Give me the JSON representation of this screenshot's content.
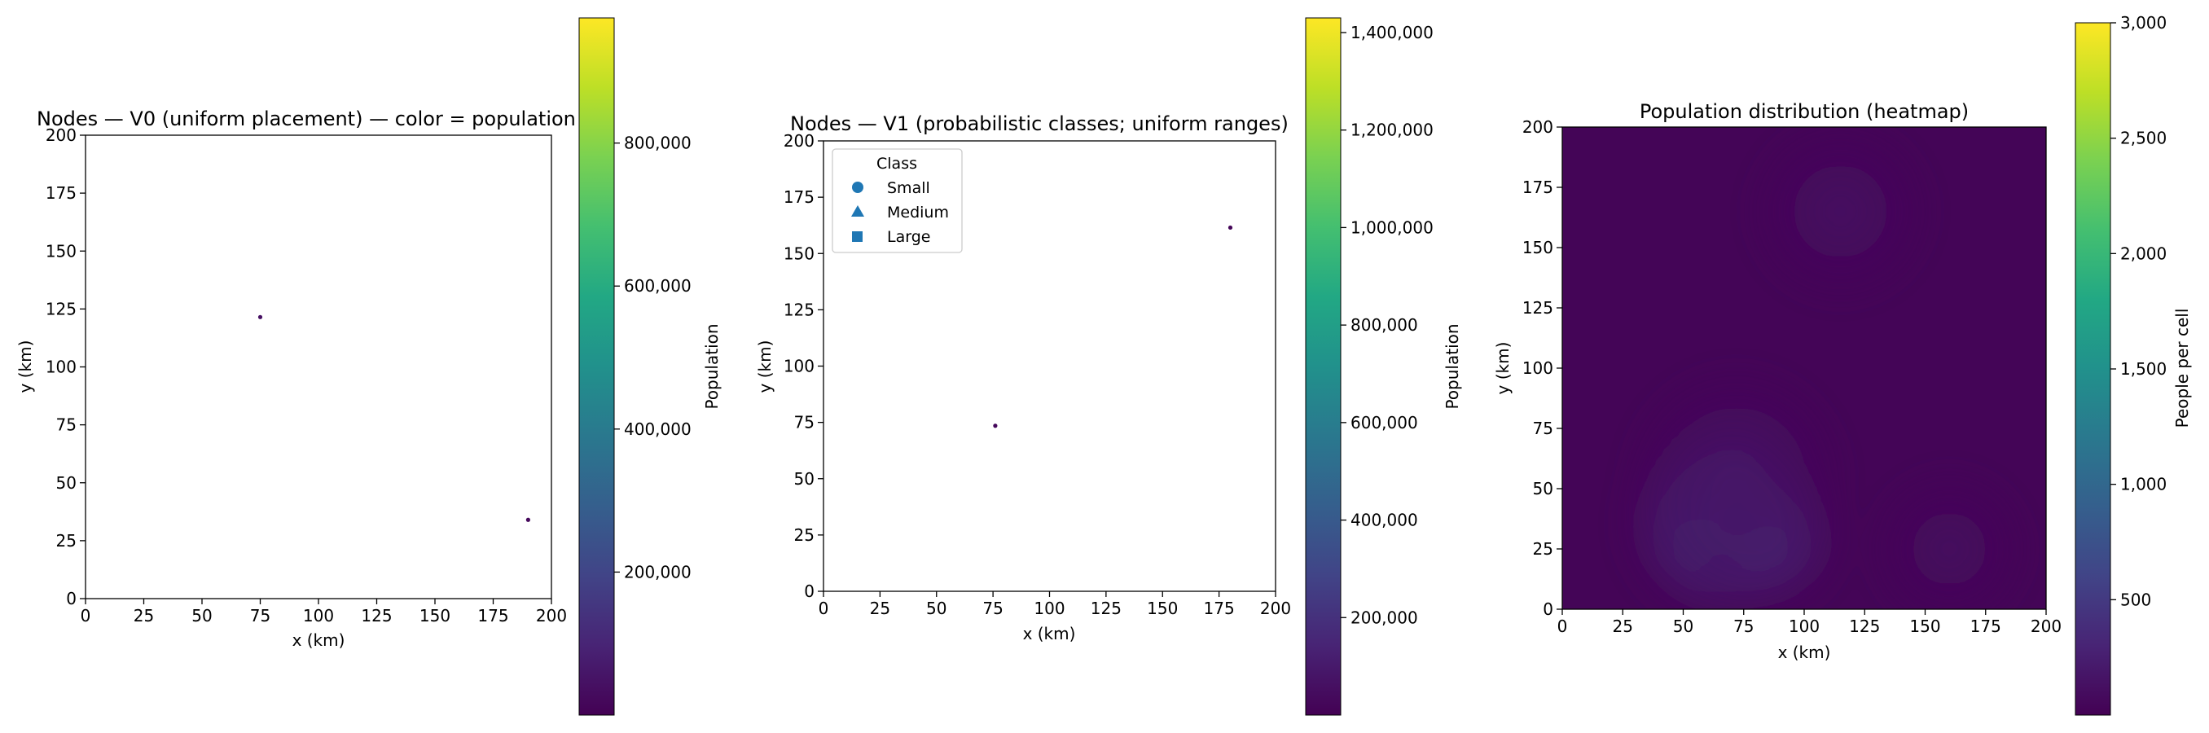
{
  "chart_data": [
    {
      "type": "scatter",
      "title": "Nodes — V0 (uniform placement) — color = population",
      "xlabel": "x (km)",
      "ylabel": "y (km)",
      "xlim": [
        0,
        200
      ],
      "ylim": [
        0,
        200
      ],
      "xticks": [
        "0",
        "25",
        "50",
        "75",
        "100",
        "125",
        "150",
        "175",
        "200"
      ],
      "yticks": [
        "0",
        "25",
        "50",
        "75",
        "100",
        "125",
        "150",
        "175",
        "200"
      ],
      "points": [
        {
          "x": 75,
          "y": 121.5,
          "population": 40000
        },
        {
          "x": 190,
          "y": 34,
          "population": 20000
        }
      ],
      "colorbar": {
        "label": "Population",
        "colormap": "viridis",
        "range": [
          0,
          975000
        ],
        "ticks": [
          200000,
          400000,
          600000,
          800000
        ],
        "tick_labels": [
          "200,000",
          "400,000",
          "600,000",
          "800,000"
        ]
      },
      "grid": false
    },
    {
      "type": "scatter",
      "title": "Nodes — V1 (probabilistic classes; uniform ranges)",
      "xlabel": "x (km)",
      "ylabel": "y (km)",
      "xlim": [
        0,
        200
      ],
      "ylim": [
        0,
        200
      ],
      "xticks": [
        "0",
        "25",
        "50",
        "75",
        "100",
        "125",
        "150",
        "175",
        "200"
      ],
      "yticks": [
        "0",
        "25",
        "50",
        "75",
        "100",
        "125",
        "150",
        "175",
        "200"
      ],
      "points": [
        {
          "x": 76,
          "y": 73.5,
          "population": 30000
        },
        {
          "x": 180,
          "y": 161.5,
          "population": 20000
        }
      ],
      "legend": {
        "title": "Class",
        "position": "top-left",
        "entries": [
          {
            "label": "Small",
            "marker": "circle"
          },
          {
            "label": "Medium",
            "marker": "triangle"
          },
          {
            "label": "Large",
            "marker": "square"
          }
        ],
        "color": "#1f77b4"
      },
      "colorbar": {
        "label": "Population",
        "colormap": "viridis",
        "range": [
          0,
          1430000
        ],
        "ticks": [
          200000,
          400000,
          600000,
          800000,
          1000000,
          1200000,
          1400000
        ],
        "tick_labels": [
          "200,000",
          "400,000",
          "600,000",
          "800,000",
          "1,000,000",
          "1,200,000",
          "1,400,000"
        ]
      },
      "grid": false
    },
    {
      "type": "heatmap",
      "title": "Population distribution (heatmap)",
      "xlabel": "x (km)",
      "ylabel": "y (km)",
      "xlim": [
        0,
        200
      ],
      "ylim": [
        0,
        200
      ],
      "xticks": [
        "0",
        "25",
        "50",
        "75",
        "100",
        "125",
        "150",
        "175",
        "200"
      ],
      "yticks": [
        "0",
        "25",
        "50",
        "75",
        "100",
        "125",
        "150",
        "175",
        "200"
      ],
      "background_value": 30,
      "hotspots": [
        {
          "x": 65,
          "y": 35,
          "peak": 560,
          "radius_km": 28
        },
        {
          "x": 85,
          "y": 30,
          "peak": 380,
          "radius_km": 22
        },
        {
          "x": 72,
          "y": 55,
          "peak": 180,
          "radius_km": 30
        },
        {
          "x": 115,
          "y": 165,
          "peak": 130,
          "radius_km": 25
        },
        {
          "x": 160,
          "y": 25,
          "peak": 110,
          "radius_km": 22
        }
      ],
      "colorbar": {
        "label": "People per cell",
        "colormap": "viridis",
        "range": [
          0,
          3000
        ],
        "ticks": [
          500,
          1000,
          1500,
          2000,
          2500,
          3000
        ],
        "tick_labels": [
          "500",
          "1,000",
          "1,500",
          "2,000",
          "2,500",
          "3,000"
        ]
      },
      "grid": false
    }
  ]
}
